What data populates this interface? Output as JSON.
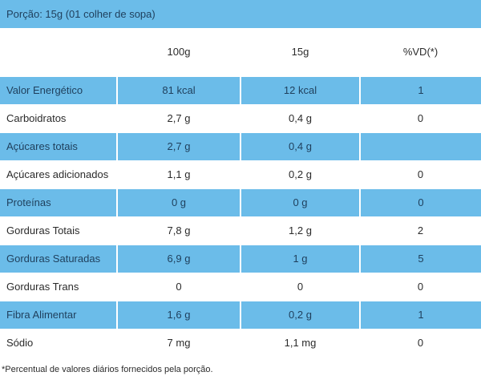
{
  "portion": {
    "label": "Porção: 15g (01 colher de sopa)",
    "color": "#6bbce9"
  },
  "columns": [
    "",
    "100g",
    "15g",
    "%VD(*)"
  ],
  "rows": [
    {
      "name": "Valor Energético",
      "per100g": "81 kcal",
      "per15g": "12 kcal",
      "vd": "1"
    },
    {
      "name": "Carboidratos",
      "per100g": "2,7 g",
      "per15g": "0,4 g",
      "vd": "0"
    },
    {
      "name": "Açúcares totais",
      "per100g": "2,7 g",
      "per15g": "0,4 g",
      "vd": ""
    },
    {
      "name": "Açúcares adicionados",
      "per100g": "1,1 g",
      "per15g": "0,2 g",
      "vd": "0"
    },
    {
      "name": "Proteínas",
      "per100g": "0 g",
      "per15g": "0 g",
      "vd": "0"
    },
    {
      "name": "Gorduras Totais",
      "per100g": "7,8 g",
      "per15g": "1,2 g",
      "vd": "2"
    },
    {
      "name": "Gorduras Saturadas",
      "per100g": "6,9 g",
      "per15g": "1 g",
      "vd": "5"
    },
    {
      "name": "Gorduras Trans",
      "per100g": "0",
      "per15g": "0",
      "vd": "0"
    },
    {
      "name": "Fibra Alimentar",
      "per100g": "1,6 g",
      "per15g": "0,2 g",
      "vd": "1"
    },
    {
      "name": "Sódio",
      "per100g": "7 mg",
      "per15g": "1,1 mg",
      "vd": "0"
    }
  ],
  "footnote": "*Percentual de valores diários fornecidos pela porção."
}
